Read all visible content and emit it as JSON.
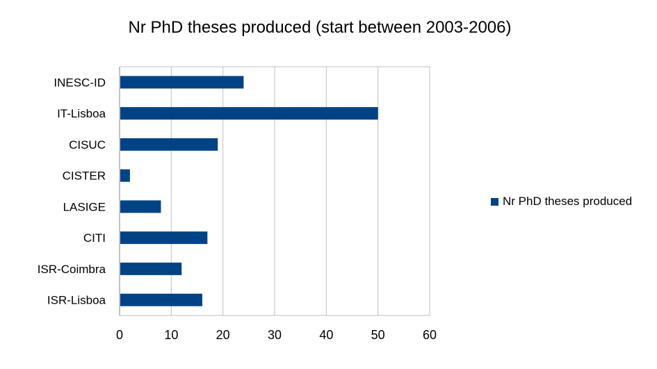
{
  "chart_data": {
    "type": "bar",
    "orientation": "horizontal",
    "title": "Nr PhD theses produced (start between 2003-2006)",
    "categories": [
      "INESC-ID",
      "IT-Lisboa",
      "CISUC",
      "CISTER",
      "LASIGE",
      "CITI",
      "ISR-Coimbra",
      "ISR-Lisboa"
    ],
    "series": [
      {
        "name": "Nr PhD theses produced",
        "values": [
          24,
          50,
          19,
          2,
          8,
          17,
          12,
          16
        ],
        "color": "#004385"
      }
    ],
    "xlim": [
      0,
      60
    ],
    "xticks": [
      "0",
      "10",
      "20",
      "30",
      "40",
      "50",
      "60"
    ],
    "grid": true,
    "legend": "right"
  }
}
